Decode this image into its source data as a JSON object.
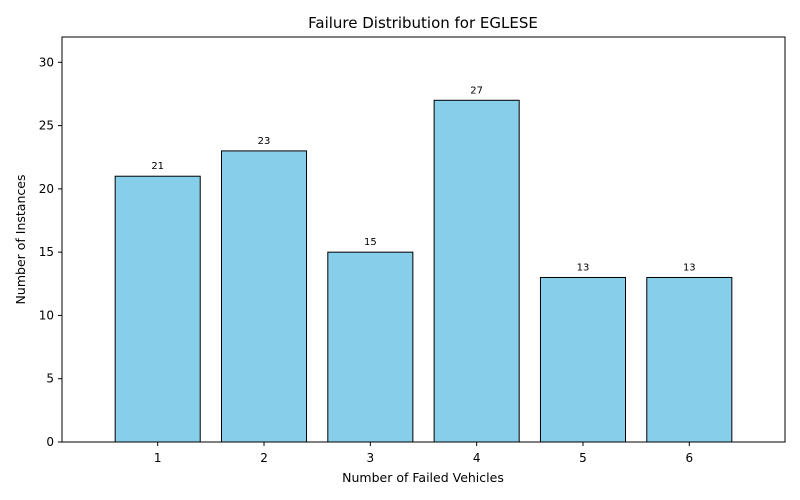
{
  "chart_data": {
    "type": "bar",
    "title": "Failure Distribution for EGLESE",
    "xlabel": "Number of Failed Vehicles",
    "ylabel": "Number of Instances",
    "categories": [
      "1",
      "2",
      "3",
      "4",
      "5",
      "6"
    ],
    "values": [
      21,
      23,
      15,
      27,
      13,
      13
    ],
    "ylim": [
      0,
      32
    ],
    "yticks": [
      0,
      5,
      10,
      15,
      20,
      25,
      30
    ],
    "grid": false,
    "data_labels": true,
    "colors": {
      "bar_fill": "#87CEEB",
      "bar_edge": "#000000"
    }
  }
}
